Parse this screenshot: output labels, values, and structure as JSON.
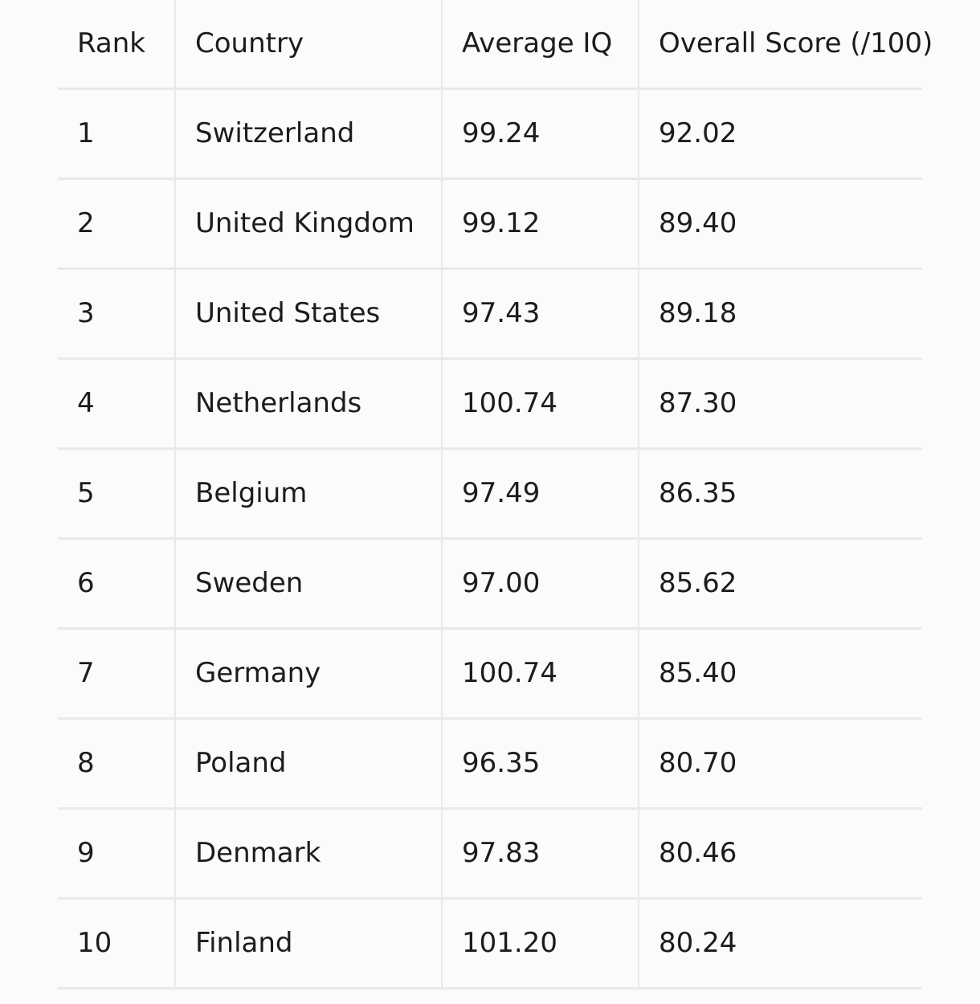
{
  "table": {
    "headers": [
      "Rank",
      "Country",
      "Average IQ",
      "Overall Score (/100)"
    ],
    "rows": [
      [
        "1",
        "Switzerland",
        "99.24",
        "92.02"
      ],
      [
        "2",
        "United Kingdom",
        "99.12",
        "89.40"
      ],
      [
        "3",
        "United States",
        "97.43",
        "89.18"
      ],
      [
        "4",
        "Netherlands",
        "100.74",
        "87.30"
      ],
      [
        "5",
        "Belgium",
        "97.49",
        "86.35"
      ],
      [
        "6",
        "Sweden",
        "97.00",
        "85.62"
      ],
      [
        "7",
        "Germany",
        "100.74",
        "85.40"
      ],
      [
        "8",
        "Poland",
        "96.35",
        "80.70"
      ],
      [
        "9",
        "Denmark",
        "97.83",
        "80.46"
      ],
      [
        "10",
        "Finland",
        "101.20",
        "80.24"
      ]
    ]
  }
}
